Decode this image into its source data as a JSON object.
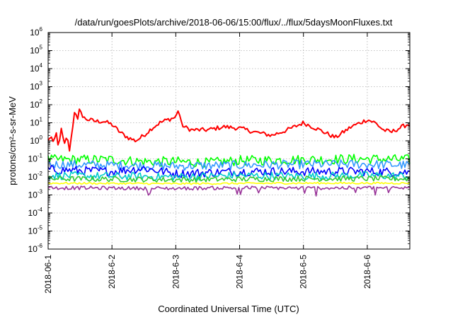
{
  "chart_data": {
    "type": "line",
    "title": "/data/run/goesPlots/archive/2018-06-06/15:00/flux/../flux/5daysMoonFluxes.txt",
    "xlabel": "Coordinated Universal Time (UTC)",
    "ylabel": "protons/cm²-s-sr-MeV",
    "x_scale": "time",
    "y_scale": "log",
    "xlim": [
      "2018-06-01",
      "2018-06-06 16:00"
    ],
    "ylim": [
      1e-06,
      1000000.0
    ],
    "grid": true,
    "legend": "none",
    "x_ticks": [
      "2018-06-1",
      "2018-6-2",
      "2018-6-3",
      "2018-6-4",
      "2018-6-5",
      "2018-6-6"
    ],
    "y_ticks": [
      {
        "base": "10",
        "exp": "-6"
      },
      {
        "base": "10",
        "exp": "-5"
      },
      {
        "base": "10",
        "exp": "-4"
      },
      {
        "base": "10",
        "exp": "-3"
      },
      {
        "base": "10",
        "exp": "-2"
      },
      {
        "base": "10",
        "exp": "-1"
      },
      {
        "base": "10",
        "exp": "0"
      },
      {
        "base": "10",
        "exp": "1"
      },
      {
        "base": "10",
        "exp": "2"
      },
      {
        "base": "10",
        "exp": "3"
      },
      {
        "base": "10",
        "exp": "4"
      },
      {
        "base": "10",
        "exp": "5"
      },
      {
        "base": "10",
        "exp": "6"
      }
    ],
    "series": [
      {
        "color": "#ff0000",
        "noise": 0.12,
        "points": [
          [
            "2018-06-01 00:00",
            1.0
          ],
          [
            "2018-06-01 01:00",
            2.0
          ],
          [
            "2018-06-01 02:00",
            0.6
          ],
          [
            "2018-06-01 03:00",
            3.0
          ],
          [
            "2018-06-01 04:00",
            0.4
          ],
          [
            "2018-06-01 05:00",
            5.0
          ],
          [
            "2018-06-01 06:00",
            0.5
          ],
          [
            "2018-06-01 07:00",
            2.0
          ],
          [
            "2018-06-01 08:00",
            0.3
          ],
          [
            "2018-06-01 09:00",
            3.0
          ],
          [
            "2018-06-01 10:00",
            60
          ],
          [
            "2018-06-01 11:00",
            10
          ],
          [
            "2018-06-01 12:00",
            80
          ],
          [
            "2018-06-01 13:00",
            20
          ],
          [
            "2018-06-01 15:00",
            15
          ],
          [
            "2018-06-01 18:00",
            12
          ],
          [
            "2018-06-01 21:00",
            12
          ],
          [
            "2018-06-02 00:00",
            8
          ],
          [
            "2018-06-02 03:00",
            3
          ],
          [
            "2018-06-02 06:00",
            1.5
          ],
          [
            "2018-06-02 09:00",
            1.0
          ],
          [
            "2018-06-02 12:00",
            2.0
          ],
          [
            "2018-06-02 15:00",
            5.0
          ],
          [
            "2018-06-02 18:00",
            10
          ],
          [
            "2018-06-02 21:00",
            15
          ],
          [
            "2018-06-03 00:00",
            20
          ],
          [
            "2018-06-03 01:00",
            60
          ],
          [
            "2018-06-03 02:00",
            10
          ],
          [
            "2018-06-03 03:00",
            6
          ],
          [
            "2018-06-03 06:00",
            4
          ],
          [
            "2018-06-03 12:00",
            4
          ],
          [
            "2018-06-03 18:00",
            6
          ],
          [
            "2018-06-04 00:00",
            5
          ],
          [
            "2018-06-04 06:00",
            3
          ],
          [
            "2018-06-04 12:00",
            2
          ],
          [
            "2018-06-04 18:00",
            4
          ],
          [
            "2018-06-05 00:00",
            10
          ],
          [
            "2018-06-05 06:00",
            4
          ],
          [
            "2018-06-05 12:00",
            1.5
          ],
          [
            "2018-06-05 18:00",
            6
          ],
          [
            "2018-06-06 00:00",
            15
          ],
          [
            "2018-06-06 03:00",
            10
          ],
          [
            "2018-06-06 06:00",
            4
          ],
          [
            "2018-06-06 09:00",
            3
          ],
          [
            "2018-06-06 12:00",
            5
          ],
          [
            "2018-06-06 15:00",
            8
          ],
          [
            "2018-06-06 16:00",
            8
          ]
        ]
      },
      {
        "color": "#00ff00",
        "noise": 0.28,
        "points": [
          [
            "2018-06-01 00:00",
            0.09
          ],
          [
            "2018-06-02 00:00",
            0.09
          ],
          [
            "2018-06-02 12:00",
            0.07
          ],
          [
            "2018-06-03 00:00",
            0.07
          ],
          [
            "2018-06-03 12:00",
            0.06
          ],
          [
            "2018-06-04 00:00",
            0.08
          ],
          [
            "2018-06-05 00:00",
            0.09
          ],
          [
            "2018-06-06 00:00",
            0.1
          ],
          [
            "2018-06-06 16:00",
            0.09
          ]
        ]
      },
      {
        "color": "#3399ff",
        "noise": 0.25,
        "points": [
          [
            "2018-06-01 00:00",
            0.05
          ],
          [
            "2018-06-02 00:00",
            0.045
          ],
          [
            "2018-06-03 00:00",
            0.04
          ],
          [
            "2018-06-04 00:00",
            0.045
          ],
          [
            "2018-06-05 00:00",
            0.05
          ],
          [
            "2018-06-06 00:00",
            0.05
          ],
          [
            "2018-06-06 16:00",
            0.045
          ]
        ]
      },
      {
        "color": "#0000ff",
        "noise": 0.25,
        "points": [
          [
            "2018-06-01 00:00",
            0.025
          ],
          [
            "2018-06-02 00:00",
            0.02
          ],
          [
            "2018-06-02 12:00",
            0.03
          ],
          [
            "2018-06-03 00:00",
            0.015
          ],
          [
            "2018-06-04 00:00",
            0.02
          ],
          [
            "2018-06-05 00:00",
            0.02
          ],
          [
            "2018-06-06 00:00",
            0.02
          ],
          [
            "2018-06-06 16:00",
            0.018
          ]
        ]
      },
      {
        "color": "#00cccc",
        "noise": 0.22,
        "points": [
          [
            "2018-06-01 00:00",
            0.012
          ],
          [
            "2018-06-02 00:00",
            0.011
          ],
          [
            "2018-06-03 00:00",
            0.01
          ],
          [
            "2018-06-04 00:00",
            0.012
          ],
          [
            "2018-06-05 00:00",
            0.011
          ],
          [
            "2018-06-06 00:00",
            0.012
          ],
          [
            "2018-06-06 16:00",
            0.011
          ]
        ]
      },
      {
        "color": "#33cc33",
        "noise": 0.15,
        "points": [
          [
            "2018-06-01 00:00",
            0.008
          ],
          [
            "2018-06-03 00:00",
            0.007
          ],
          [
            "2018-06-05 00:00",
            0.008
          ],
          [
            "2018-06-06 16:00",
            0.008
          ]
        ]
      },
      {
        "color": "#ffff00",
        "noise": 0.05,
        "points": [
          [
            "2018-06-01 00:00",
            0.0045
          ],
          [
            "2018-06-03 00:00",
            0.0042
          ],
          [
            "2018-06-05 00:00",
            0.0045
          ],
          [
            "2018-06-06 16:00",
            0.0045
          ]
        ]
      },
      {
        "color": "#993399",
        "noise": 0.1,
        "points": [
          [
            "2018-06-01 00:00",
            0.0025
          ],
          [
            "2018-06-02 00:00",
            0.0024
          ],
          [
            "2018-06-03 00:00",
            0.0023
          ],
          [
            "2018-06-04 00:00",
            0.0025
          ],
          [
            "2018-06-05 00:00",
            0.0024
          ],
          [
            "2018-06-06 00:00",
            0.0025
          ],
          [
            "2018-06-06 16:00",
            0.0024
          ]
        ]
      }
    ]
  }
}
